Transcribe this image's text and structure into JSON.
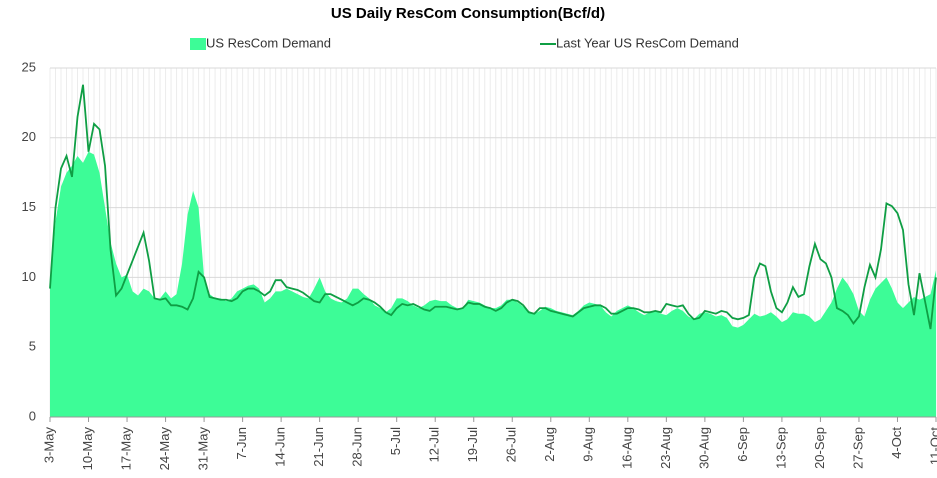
{
  "chart_data": {
    "type": "area_line",
    "title": "US Daily ResCom Consumption(Bcf/d)",
    "categories": [
      "3-May",
      null,
      null,
      null,
      null,
      null,
      null,
      "10-May",
      null,
      null,
      null,
      null,
      null,
      null,
      "17-May",
      null,
      null,
      null,
      null,
      null,
      null,
      "24-May",
      null,
      null,
      null,
      null,
      null,
      null,
      "31-May",
      null,
      null,
      null,
      null,
      null,
      null,
      "7-Jun",
      null,
      null,
      null,
      null,
      null,
      null,
      "14-Jun",
      null,
      null,
      null,
      null,
      null,
      null,
      "21-Jun",
      null,
      null,
      null,
      null,
      null,
      null,
      "28-Jun",
      null,
      null,
      null,
      null,
      null,
      null,
      "5-Jul",
      null,
      null,
      null,
      null,
      null,
      null,
      "12-Jul",
      null,
      null,
      null,
      null,
      null,
      null,
      "19-Jul",
      null,
      null,
      null,
      null,
      null,
      null,
      "26-Jul",
      null,
      null,
      null,
      null,
      null,
      null,
      "2-Aug",
      null,
      null,
      null,
      null,
      null,
      null,
      "9-Aug",
      null,
      null,
      null,
      null,
      null,
      null,
      "16-Aug",
      null,
      null,
      null,
      null,
      null,
      null,
      "23-Aug",
      null,
      null,
      null,
      null,
      null,
      null,
      "30-Aug",
      null,
      null,
      null,
      null,
      null,
      null,
      "6-Sep",
      null,
      null,
      null,
      null,
      null,
      null,
      "13-Sep",
      null,
      null,
      null,
      null,
      null,
      null,
      "20-Sep",
      null,
      null,
      null,
      null,
      null,
      null,
      "27-Sep",
      null,
      null,
      null,
      null,
      null,
      null,
      "4-Oct",
      null,
      null,
      null,
      null,
      null,
      null,
      "11-Oct"
    ],
    "series": [
      {
        "name": "US ResCom Demand",
        "kind": "area",
        "color": "#3dfc97",
        "values": [
          9.5,
          14,
          16.5,
          17.5,
          18,
          18.7,
          18.2,
          19,
          18.8,
          17.5,
          15,
          12.5,
          11,
          10,
          10.2,
          9,
          8.7,
          9.2,
          9,
          8.5,
          8.5,
          9,
          8.5,
          8.8,
          11,
          14.5,
          16.2,
          15,
          10,
          8.8,
          8.5,
          8.5,
          8.3,
          8.5,
          9,
          9.2,
          9.4,
          9.5,
          9.2,
          8.2,
          8.5,
          9,
          9,
          9.2,
          9,
          8.8,
          8.6,
          8.5,
          9.2,
          10,
          9,
          8.5,
          8.3,
          8.2,
          8.5,
          9.2,
          9.2,
          8.8,
          8.5,
          8,
          7.8,
          7.5,
          7.8,
          8.5,
          8.5,
          8.3,
          8,
          7.8,
          8,
          8.3,
          8.4,
          8.3,
          8.3,
          8,
          7.8,
          7.8,
          8.4,
          8.3,
          8.2,
          8,
          7.8,
          7.8,
          8,
          8.4,
          8.4,
          8.2,
          7.9,
          7.6,
          7.4,
          7.6,
          7.9,
          7.8,
          7.6,
          7.5,
          7.4,
          7.3,
          7.6,
          8,
          8.2,
          8.1,
          8,
          7.5,
          7.2,
          7.6,
          7.8,
          8,
          7.8,
          7.5,
          7.3,
          7.5,
          7.6,
          7.4,
          7.3,
          7.6,
          7.8,
          7.6,
          7.2,
          7,
          7.4,
          7.5,
          7.4,
          7.2,
          7.3,
          7.1,
          6.5,
          6.4,
          6.6,
          7,
          7.4,
          7.2,
          7.3,
          7.5,
          7.2,
          6.8,
          7,
          7.5,
          7.4,
          7.4,
          7.2,
          6.8,
          7,
          7.6,
          8.2,
          9.2,
          10,
          9.5,
          8.8,
          7.6,
          7.2,
          8.4,
          9.2,
          9.6,
          10,
          9.2,
          8.2,
          7.8,
          8.2,
          8.6,
          8.4,
          8.6,
          8.8,
          10.5
        ]
      },
      {
        "name": "Last Year US ResCom Demand",
        "kind": "line",
        "color": "#0f9e44",
        "values": [
          9.2,
          15,
          17.8,
          18.7,
          17.2,
          21.5,
          23.8,
          19,
          21,
          20.6,
          18,
          12,
          8.7,
          9.2,
          10.2,
          11.2,
          12.2,
          13.2,
          11.2,
          8.5,
          8.4,
          8.5,
          8,
          8,
          7.9,
          7.7,
          8.5,
          10.4,
          10,
          8.6,
          8.5,
          8.4,
          8.4,
          8.3,
          8.5,
          9,
          9.2,
          9.2,
          9,
          8.7,
          9,
          9.8,
          9.8,
          9.3,
          9.2,
          9.1,
          8.9,
          8.6,
          8.3,
          8.2,
          8.8,
          8.8,
          8.6,
          8.4,
          8.2,
          8,
          8.2,
          8.5,
          8.4,
          8.2,
          7.9,
          7.5,
          7.3,
          7.8,
          8.1,
          8,
          8.1,
          7.9,
          7.7,
          7.6,
          7.9,
          7.9,
          7.9,
          7.8,
          7.7,
          7.8,
          8.2,
          8.1,
          8.1,
          7.9,
          7.8,
          7.6,
          7.8,
          8.2,
          8.4,
          8.3,
          8,
          7.5,
          7.4,
          7.8,
          7.8,
          7.6,
          7.5,
          7.4,
          7.3,
          7.2,
          7.5,
          7.8,
          7.9,
          8,
          8,
          7.8,
          7.4,
          7.4,
          7.6,
          7.8,
          7.8,
          7.7,
          7.5,
          7.5,
          7.6,
          7.5,
          8.1,
          8,
          7.9,
          8,
          7.4,
          7,
          7.1,
          7.6,
          7.5,
          7.4,
          7.6,
          7.5,
          7.1,
          7,
          7.1,
          7.3,
          10,
          11,
          10.8,
          9,
          7.8,
          7.5,
          8.2,
          9.3,
          8.6,
          8.8,
          10.8,
          12.4,
          11.3,
          11,
          10,
          7.8,
          7.6,
          7.3,
          6.7,
          7.2,
          9.3,
          10.9,
          10,
          12,
          15.3,
          15.1,
          14.6,
          13.4,
          9.5,
          7.3,
          10.3,
          8.3,
          6.3,
          10
        ]
      }
    ],
    "ylim": [
      0,
      25
    ],
    "yticks": [
      0,
      5,
      10,
      15,
      20,
      25
    ],
    "grid": true,
    "legend": "top"
  }
}
